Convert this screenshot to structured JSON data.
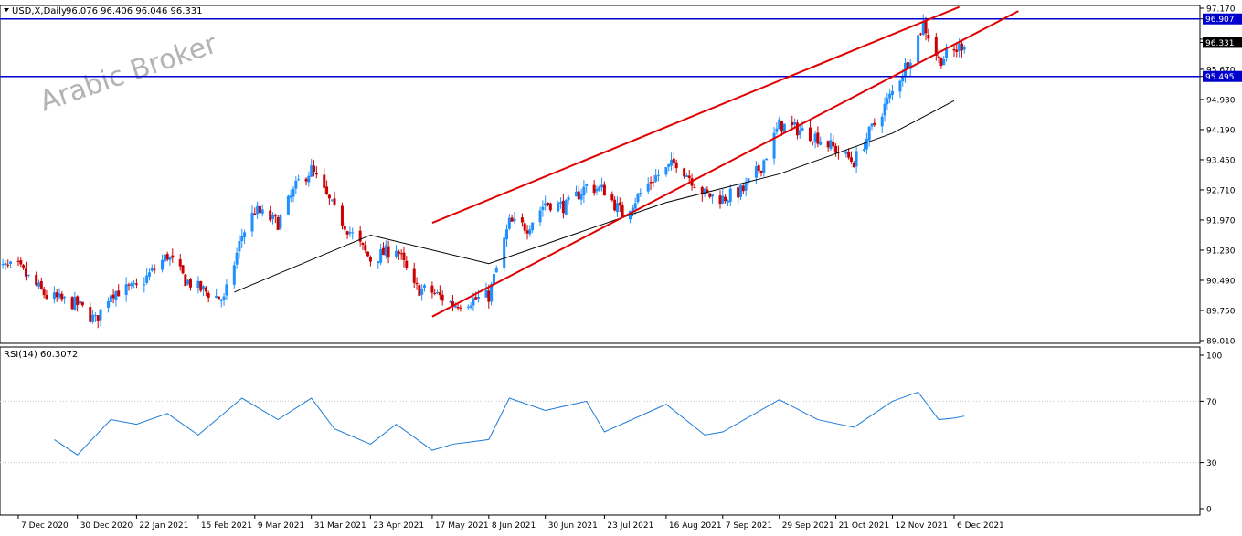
{
  "header": {
    "symbol_timeframe": "USD,X,Daily",
    "ohlc": "96.076 96.406 96.046 96.331"
  },
  "watermark": "Arabic Broker",
  "rsi": {
    "label": "RSI(14) 60.3072",
    "levels": [
      "100",
      "70",
      "30",
      "0"
    ]
  },
  "colors": {
    "up_candle": "#1e90ff",
    "down_candle": "#cc0000",
    "channel": "#e00000",
    "hline": "#0000cc",
    "moving_average": "#000000",
    "rsi_line": "#1e7bd6",
    "tag_bg": "#0000cc",
    "current_tag_bg": "#000000"
  },
  "chart_data": {
    "type": "candlestick",
    "instrument": "USD,X",
    "timeframe": "Daily",
    "y_ticks": [
      "97.170",
      "96.907",
      "96.410",
      "96.331",
      "95.670",
      "95.495",
      "94.930",
      "94.190",
      "93.450",
      "92.710",
      "91.970",
      "91.230",
      "90.490",
      "89.750",
      "89.010"
    ],
    "ylim": [
      89.01,
      97.17
    ],
    "x_labels": [
      "7 Dec 2020",
      "30 Dec 2020",
      "22 Jan 2021",
      "15 Feb 2021",
      "9 Mar 2021",
      "31 Mar 2021",
      "23 Apr 2021",
      "17 May 2021",
      "8 Jun 2021",
      "30 Jun 2021",
      "23 Jul 2021",
      "16 Aug 2021",
      "7 Sep 2021",
      "29 Sep 2021",
      "21 Oct 2021",
      "12 Nov 2021",
      "6 Dec 2021"
    ],
    "horizontal_levels": [
      96.907,
      95.495
    ],
    "last_price": 96.331,
    "close_path": [
      {
        "date": "7 Dec 2020",
        "close": 90.8
      },
      {
        "date": "18 Dec 2020",
        "close": 90.1
      },
      {
        "date": "30 Dec 2020",
        "close": 89.9
      },
      {
        "date": "6 Jan 2021",
        "close": 89.5
      },
      {
        "date": "12 Jan 2021",
        "close": 90.2
      },
      {
        "date": "22 Jan 2021",
        "close": 90.3
      },
      {
        "date": "3 Feb 2021",
        "close": 91.1
      },
      {
        "date": "10 Feb 2021",
        "close": 90.5
      },
      {
        "date": "15 Feb 2021",
        "close": 90.3
      },
      {
        "date": "25 Feb 2021",
        "close": 90.0
      },
      {
        "date": "4 Mar 2021",
        "close": 91.6
      },
      {
        "date": "9 Mar 2021",
        "close": 92.2
      },
      {
        "date": "18 Mar 2021",
        "close": 91.9
      },
      {
        "date": "26 Mar 2021",
        "close": 92.9
      },
      {
        "date": "31 Mar 2021",
        "close": 93.2
      },
      {
        "date": "9 Apr 2021",
        "close": 92.2
      },
      {
        "date": "23 Apr 2021",
        "close": 91.0
      },
      {
        "date": "3 May 2021",
        "close": 91.3
      },
      {
        "date": "10 May 2021",
        "close": 90.3
      },
      {
        "date": "17 May 2021",
        "close": 90.2
      },
      {
        "date": "25 May 2021",
        "close": 89.9
      },
      {
        "date": "8 Jun 2021",
        "close": 90.1
      },
      {
        "date": "16 Jun 2021",
        "close": 91.9
      },
      {
        "date": "23 Jun 2021",
        "close": 91.8
      },
      {
        "date": "30 Jun 2021",
        "close": 92.4
      },
      {
        "date": "8 Jul 2021",
        "close": 92.3
      },
      {
        "date": "16 Jul 2021",
        "close": 92.8
      },
      {
        "date": "23 Jul 2021",
        "close": 92.7
      },
      {
        "date": "30 Jul 2021",
        "close": 92.1
      },
      {
        "date": "11 Aug 2021",
        "close": 93.0
      },
      {
        "date": "16 Aug 2021",
        "close": 93.2
      },
      {
        "date": "20 Aug 2021",
        "close": 93.4
      },
      {
        "date": "31 Aug 2021",
        "close": 92.6
      },
      {
        "date": "7 Sep 2021",
        "close": 92.5
      },
      {
        "date": "15 Sep 2021",
        "close": 92.7
      },
      {
        "date": "22 Sep 2021",
        "close": 93.3
      },
      {
        "date": "29 Sep 2021",
        "close": 94.3
      },
      {
        "date": "6 Oct 2021",
        "close": 94.2
      },
      {
        "date": "14 Oct 2021",
        "close": 94.0
      },
      {
        "date": "21 Oct 2021",
        "close": 93.7
      },
      {
        "date": "28 Oct 2021",
        "close": 93.4
      },
      {
        "date": "3 Nov 2021",
        "close": 94.1
      },
      {
        "date": "12 Nov 2021",
        "close": 95.1
      },
      {
        "date": "19 Nov 2021",
        "close": 96.0
      },
      {
        "date": "24 Nov 2021",
        "close": 96.8
      },
      {
        "date": "30 Nov 2021",
        "close": 95.9
      },
      {
        "date": "6 Dec 2021",
        "close": 96.1
      },
      {
        "date": "10 Dec 2021",
        "close": 96.331
      }
    ],
    "moving_average_path": [
      {
        "date": "1 Mar 2021",
        "value": 90.2
      },
      {
        "date": "23 Apr 2021",
        "value": 91.6
      },
      {
        "date": "8 Jun 2021",
        "value": 90.9
      },
      {
        "date": "16 Aug 2021",
        "value": 92.4
      },
      {
        "date": "29 Sep 2021",
        "value": 93.1
      },
      {
        "date": "12 Nov 2021",
        "value": 94.1
      },
      {
        "date": "6 Dec 2021",
        "value": 94.9
      }
    ],
    "channel_upper": [
      {
        "date": "17 May 2021",
        "value": 91.9
      },
      {
        "date": "8 Dec 2021",
        "value": 97.2
      }
    ],
    "channel_lower": [
      {
        "date": "17 May 2021",
        "value": 89.6
      },
      {
        "date": "31 Dec 2021",
        "value": 97.1
      }
    ],
    "rsi_series": [
      {
        "date": "21 Dec 2020",
        "value": 45
      },
      {
        "date": "30 Dec 2020",
        "value": 35
      },
      {
        "date": "12 Jan 2021",
        "value": 58
      },
      {
        "date": "22 Jan 2021",
        "value": 55
      },
      {
        "date": "3 Feb 2021",
        "value": 62
      },
      {
        "date": "15 Feb 2021",
        "value": 48
      },
      {
        "date": "4 Mar 2021",
        "value": 72
      },
      {
        "date": "18 Mar 2021",
        "value": 58
      },
      {
        "date": "31 Mar 2021",
        "value": 72
      },
      {
        "date": "9 Apr 2021",
        "value": 52
      },
      {
        "date": "23 Apr 2021",
        "value": 42
      },
      {
        "date": "3 May 2021",
        "value": 55
      },
      {
        "date": "17 May 2021",
        "value": 38
      },
      {
        "date": "25 May 2021",
        "value": 42
      },
      {
        "date": "8 Jun 2021",
        "value": 45
      },
      {
        "date": "16 Jun 2021",
        "value": 72
      },
      {
        "date": "30 Jun 2021",
        "value": 64
      },
      {
        "date": "16 Jul 2021",
        "value": 70
      },
      {
        "date": "23 Jul 2021",
        "value": 50
      },
      {
        "date": "16 Aug 2021",
        "value": 68
      },
      {
        "date": "31 Aug 2021",
        "value": 48
      },
      {
        "date": "7 Sep 2021",
        "value": 50
      },
      {
        "date": "29 Sep 2021",
        "value": 71
      },
      {
        "date": "14 Oct 2021",
        "value": 58
      },
      {
        "date": "28 Oct 2021",
        "value": 53
      },
      {
        "date": "12 Nov 2021",
        "value": 70
      },
      {
        "date": "22 Nov 2021",
        "value": 76
      },
      {
        "date": "30 Nov 2021",
        "value": 58
      },
      {
        "date": "6 Dec 2021",
        "value": 59
      },
      {
        "date": "10 Dec 2021",
        "value": 60.3
      }
    ],
    "rsi_ylim": [
      0,
      100
    ],
    "grid": false
  }
}
